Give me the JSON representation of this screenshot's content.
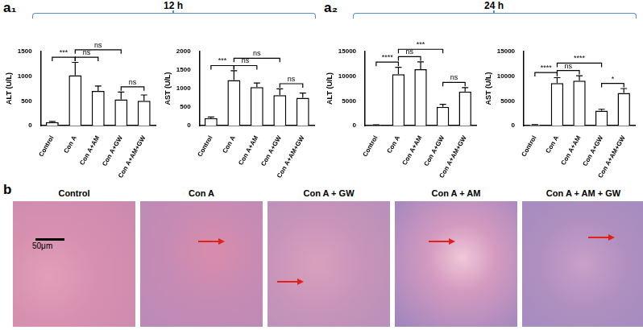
{
  "panels": [
    {
      "label": "a₁",
      "title": "12 h"
    },
    {
      "label": "a₂",
      "title": "24 h"
    }
  ],
  "chart_data": [
    {
      "type": "bar",
      "y_label": "ALT (U/L)",
      "categories": [
        "Control",
        "Con A",
        "Con A+AM",
        "Con A+GW",
        "Con A+AM+GW"
      ],
      "values": [
        70,
        1020,
        700,
        530,
        500
      ],
      "errors": [
        15,
        260,
        100,
        150,
        120
      ],
      "color": "#ffffff",
      "ylim": [
        0,
        1500
      ],
      "yticks": [
        0,
        500,
        1000,
        1500
      ],
      "grid": false,
      "comparisons": [
        {
          "from": "Control",
          "to": "Con A",
          "label": "***"
        },
        {
          "from": "Con A",
          "to": "Con A+AM",
          "label": "ns"
        },
        {
          "from": "Con A",
          "to": "Con A+GW",
          "label": "ns"
        },
        {
          "from": "Con A+GW",
          "to": "Con A+AM+GW",
          "label": "ns"
        }
      ]
    },
    {
      "type": "bar",
      "y_label": "AST (U/L)",
      "categories": [
        "Control",
        "Con A",
        "Con A+AM",
        "Con A+GW",
        "Con A+AM+GW"
      ],
      "values": [
        200,
        1230,
        1040,
        820,
        750
      ],
      "errors": [
        30,
        250,
        110,
        170,
        130
      ],
      "color": "#ffffff",
      "ylim": [
        0,
        2000
      ],
      "yticks": [
        0,
        500,
        1000,
        1500,
        2000
      ],
      "grid": false,
      "comparisons": [
        {
          "from": "Control",
          "to": "Con A",
          "label": "***"
        },
        {
          "from": "Con A",
          "to": "Con A+AM",
          "label": "ns"
        },
        {
          "from": "Con A",
          "to": "Con A+GW",
          "label": "ns"
        },
        {
          "from": "Con A+GW",
          "to": "Con A+AM+GW",
          "label": "ns"
        }
      ]
    },
    {
      "type": "bar",
      "y_label": "ALT (U/L)",
      "categories": [
        "Control",
        "Con A",
        "Con A+AM",
        "Con A+GW",
        "Con A+AM+GW"
      ],
      "values": [
        100,
        10400,
        11400,
        3800,
        6900
      ],
      "errors": [
        30,
        1400,
        1500,
        500,
        800
      ],
      "color": "#ffffff",
      "ylim": [
        0,
        15000
      ],
      "yticks": [
        0,
        5000,
        10000,
        15000
      ],
      "grid": false,
      "comparisons": [
        {
          "from": "Control",
          "to": "Con A",
          "label": "****"
        },
        {
          "from": "Con A",
          "to": "Con A+AM",
          "label": "ns"
        },
        {
          "from": "Con A",
          "to": "Con A+GW",
          "label": "***"
        },
        {
          "from": "Con A+GW",
          "to": "Con A+AM+GW",
          "label": "ns"
        }
      ]
    },
    {
      "type": "bar",
      "y_label": "AST (U/L)",
      "categories": [
        "Control",
        "Con A",
        "Con A+AM",
        "Con A+GW",
        "Con A+AM+GW"
      ],
      "values": [
        150,
        8600,
        9100,
        3000,
        6600
      ],
      "errors": [
        30,
        1100,
        1000,
        300,
        900
      ],
      "color": "#ffffff",
      "ylim": [
        0,
        15000
      ],
      "yticks": [
        0,
        5000,
        10000,
        15000
      ],
      "grid": false,
      "comparisons": [
        {
          "from": "Control",
          "to": "Con A",
          "label": "****"
        },
        {
          "from": "Con A",
          "to": "Con A+AM",
          "label": "ns"
        },
        {
          "from": "Con A",
          "to": "Con A+GW",
          "label": "****"
        },
        {
          "from": "Con A+GW",
          "to": "Con A+AM+GW",
          "label": "*"
        }
      ]
    }
  ],
  "histology": {
    "label": "b",
    "images": [
      "Control",
      "Con A",
      "Con A + GW",
      "Con A + AM",
      "Con A + AM + GW"
    ],
    "scale_bar": "50μm"
  }
}
